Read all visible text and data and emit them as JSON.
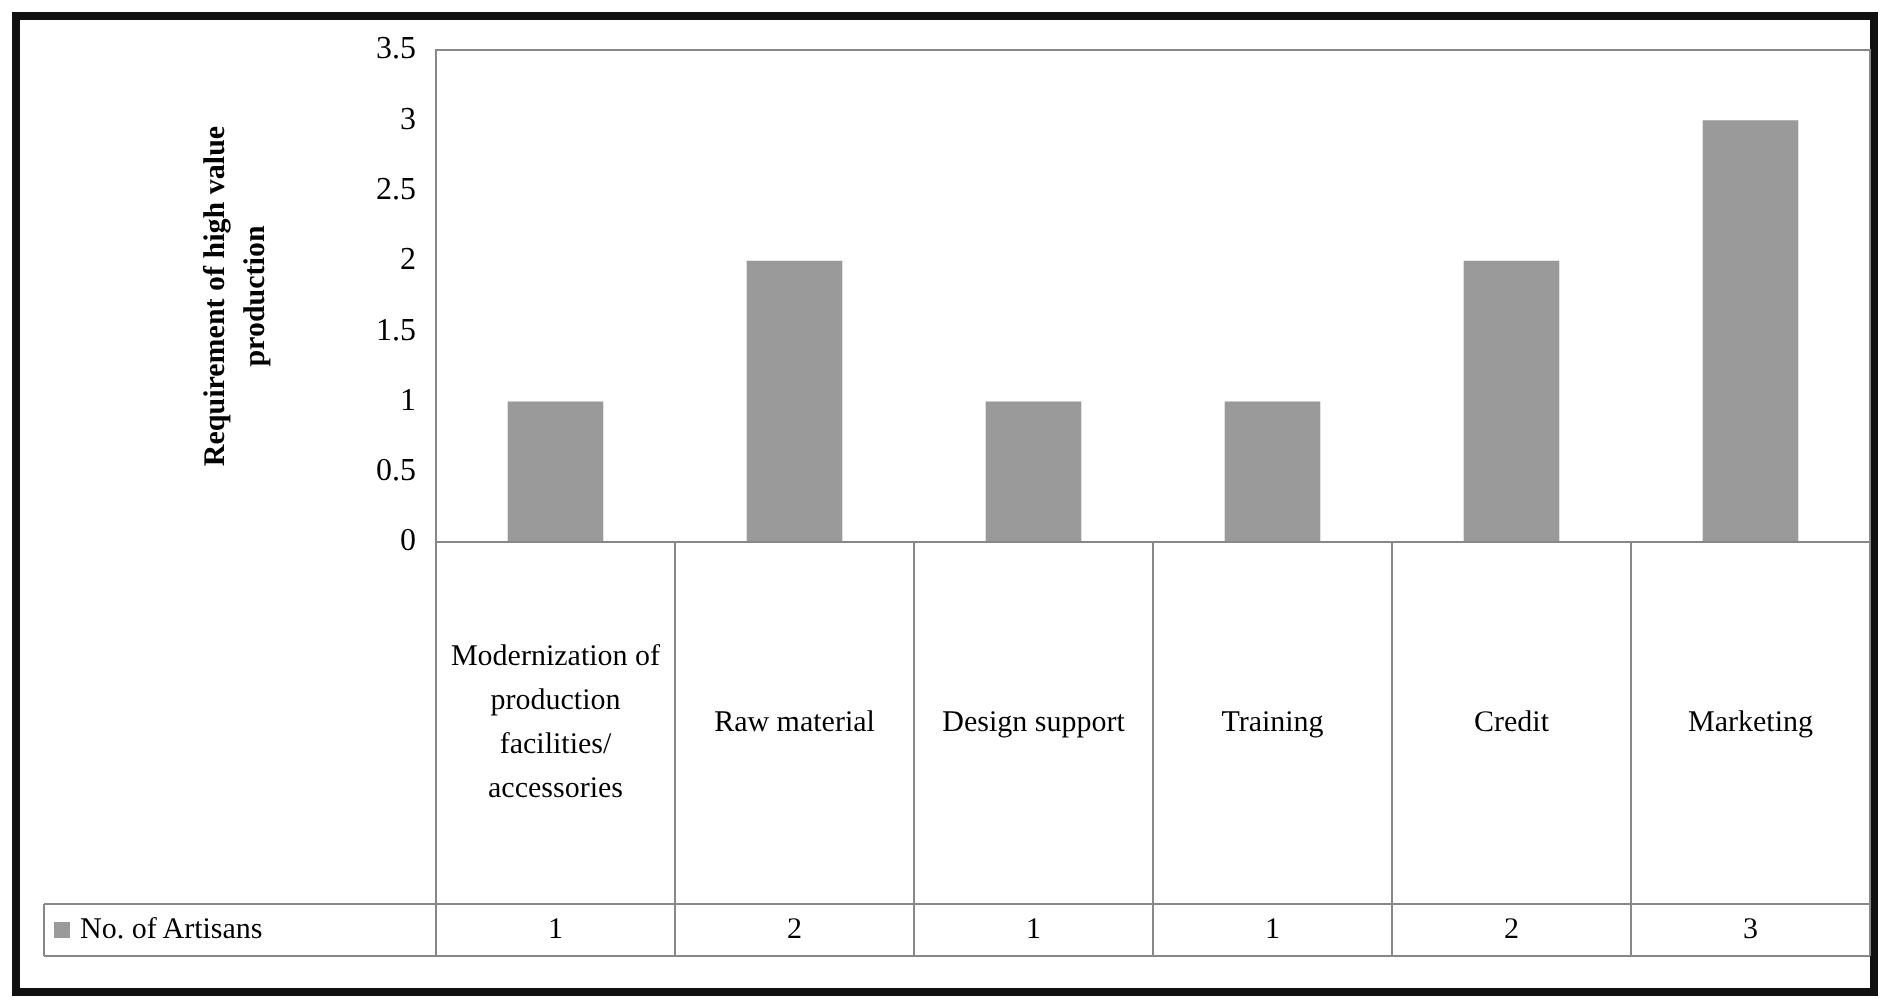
{
  "chart_data": {
    "type": "bar",
    "ylabel": "Requirement of high value production",
    "categories": [
      "Modernization of production facilities/ accessories",
      "Raw material",
      "Design support",
      "Training",
      "Credit",
      "Marketing"
    ],
    "series": [
      {
        "name": "No. of Artisans",
        "color": "#9a9a9a",
        "values": [
          1,
          2,
          1,
          1,
          2,
          3
        ]
      }
    ],
    "ylim": [
      0,
      3.5
    ],
    "yticks": [
      0,
      0.5,
      1,
      1.5,
      2,
      2.5,
      3,
      3.5
    ],
    "grid": false,
    "legend": "bottom left",
    "data_labels": true
  }
}
